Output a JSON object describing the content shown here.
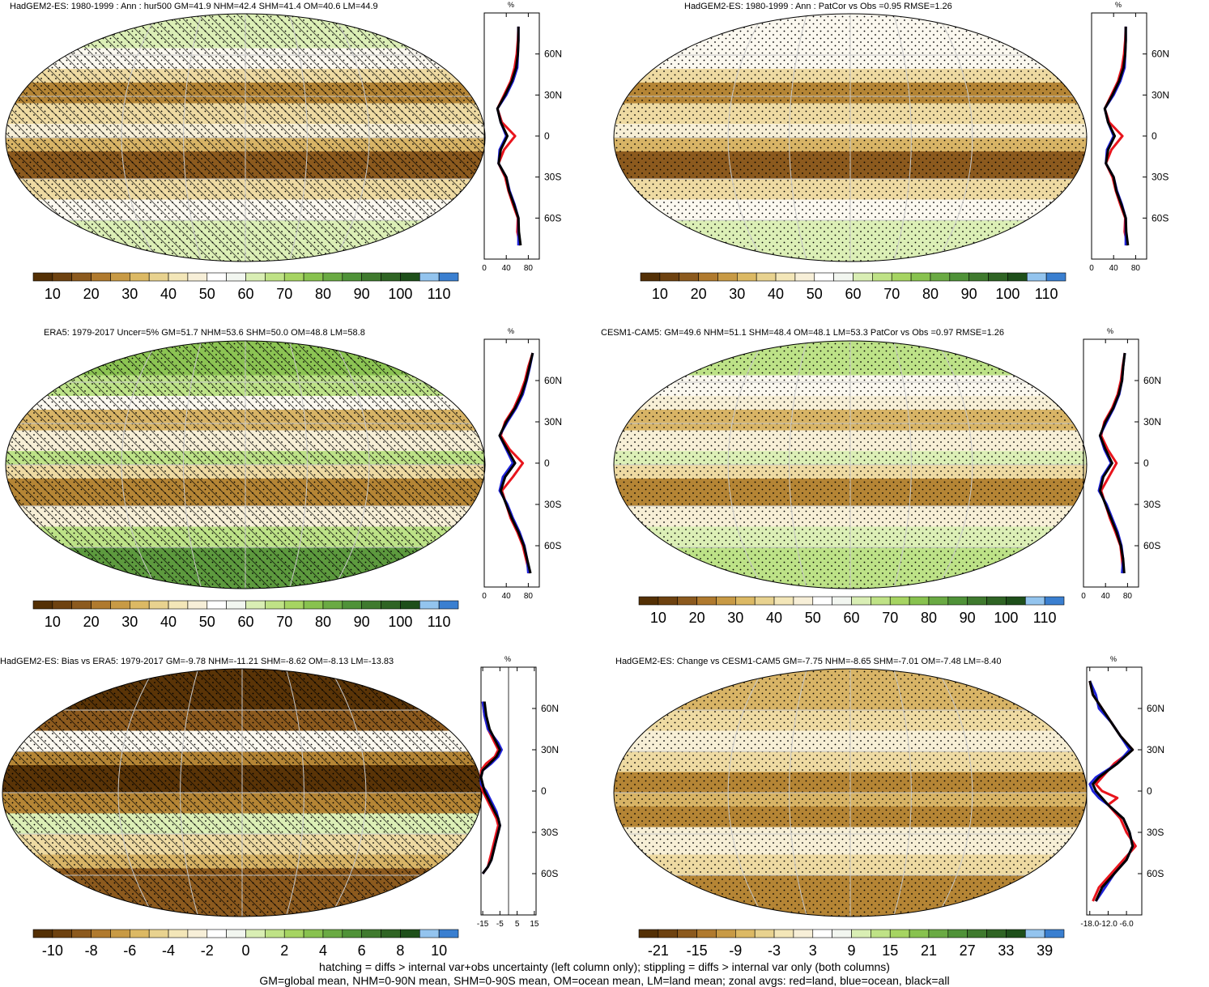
{
  "colorbars": {
    "absolute": {
      "labels": [
        "10",
        "20",
        "30",
        "40",
        "50",
        "60",
        "70",
        "80",
        "90",
        "100",
        "110"
      ],
      "colors": [
        "#543005",
        "#6e4210",
        "#8c5a1e",
        "#b07a2e",
        "#c89a45",
        "#dcb964",
        "#e8d28f",
        "#f3e6b8",
        "#f7efd8",
        "#ffffff",
        "#f2f6f0",
        "#d9eeb4",
        "#bfe286",
        "#a6d462",
        "#88c24f",
        "#6aaa43",
        "#4f9238",
        "#3f7a2e",
        "#2f6424",
        "#1e4f1a",
        "#93c4ee",
        "#3a7fd0"
      ]
    },
    "bias": {
      "labels": [
        "-10",
        "-8",
        "-6",
        "-4",
        "-2",
        "0",
        "2",
        "4",
        "6",
        "8",
        "10"
      ],
      "colors": [
        "#543005",
        "#6e4210",
        "#8c5a1e",
        "#b07a2e",
        "#c89a45",
        "#dcb964",
        "#e8d28f",
        "#f3e6b8",
        "#f7efd8",
        "#ffffff",
        "#f2f6f0",
        "#d9eeb4",
        "#bfe286",
        "#a6d462",
        "#88c24f",
        "#6aaa43",
        "#4f9238",
        "#3f7a2e",
        "#2f6424",
        "#1e4f1a",
        "#93c4ee",
        "#3a7fd0"
      ]
    },
    "change": {
      "labels": [
        "-21",
        "-15",
        "-9",
        "-3",
        "3",
        "9",
        "15",
        "21",
        "27",
        "33",
        "39"
      ],
      "colors": [
        "#543005",
        "#6e4210",
        "#8c5a1e",
        "#b07a2e",
        "#c89a45",
        "#dcb964",
        "#e8d28f",
        "#f3e6b8",
        "#f7efd8",
        "#ffffff",
        "#f2f6f0",
        "#d9eeb4",
        "#bfe286",
        "#a6d462",
        "#88c24f",
        "#6aaa43",
        "#4f9238",
        "#3f7a2e",
        "#2f6424",
        "#1e4f1a",
        "#93c4ee",
        "#3a7fd0"
      ]
    }
  },
  "series_colors": {
    "land": "#e8141c",
    "ocean": "#1f23d9",
    "all": "#000000"
  },
  "footer": {
    "line1": "hatching = diffs > internal var+obs uncertainty (left column only); stippling = diffs > internal var only (both columns)",
    "line2": "GM=global mean, NHM=0-90N mean, SHM=0-90S mean, OM=ocean mean, LM=land mean; zonal avgs: red=land, blue=ocean, black=all"
  },
  "chart_data": [
    {
      "type": "heatmap",
      "title": "HadGEM2-ES: 1980-1999 : Ann : hur500 GM=41.9 NHM=42.4 SHM=41.4 OM=40.6 LM=44.9",
      "colorbar": "absolute",
      "hatching": true,
      "stippling": true,
      "zonal": {
        "unit": "%",
        "xticks": [
          "0",
          "40",
          "80"
        ],
        "xlim": [
          0,
          100
        ],
        "yticks": [
          "60N",
          "30N",
          "0",
          "30S",
          "60S"
        ],
        "lat": [
          80,
          70,
          60,
          50,
          40,
          30,
          20,
          10,
          0,
          -10,
          -20,
          -30,
          -40,
          -50,
          -60,
          -70,
          -80
        ],
        "all": [
          62,
          62,
          61,
          58,
          50,
          38,
          24,
          30,
          42,
          30,
          26,
          40,
          45,
          54,
          62,
          63,
          66
        ],
        "land": [
          62,
          61,
          59,
          55,
          48,
          36,
          24,
          32,
          56,
          36,
          26,
          38,
          44,
          52,
          61,
          60,
          65
        ],
        "ocean": [
          62,
          62,
          61,
          60,
          52,
          40,
          24,
          30,
          40,
          28,
          26,
          40,
          46,
          55,
          62,
          62,
          62
        ]
      }
    },
    {
      "type": "heatmap",
      "title": "HadGEM2-ES: 1980-1999 : Ann : PatCor vs Obs =0.95 RMSE=1.26",
      "colorbar": "absolute",
      "hatching": false,
      "stippling": true,
      "zonal": {
        "unit": "%",
        "xticks": [
          "0",
          "40",
          "80"
        ],
        "xlim": [
          0,
          100
        ],
        "yticks": [
          "60N",
          "30N",
          "0",
          "30S",
          "60S"
        ],
        "lat": [
          80,
          70,
          60,
          50,
          40,
          30,
          20,
          10,
          0,
          -10,
          -20,
          -30,
          -40,
          -50,
          -60,
          -70,
          -80
        ],
        "all": [
          62,
          62,
          61,
          58,
          50,
          38,
          24,
          30,
          42,
          30,
          26,
          40,
          45,
          54,
          62,
          63,
          66
        ],
        "land": [
          62,
          61,
          59,
          55,
          48,
          36,
          24,
          32,
          56,
          36,
          26,
          38,
          44,
          52,
          61,
          60,
          65
        ],
        "ocean": [
          62,
          62,
          61,
          60,
          52,
          40,
          24,
          30,
          40,
          28,
          26,
          40,
          46,
          55,
          62,
          62,
          62
        ]
      }
    },
    {
      "type": "heatmap",
      "title": "ERA5: 1979-2017 Uncer=5% GM=51.7 NHM=53.6 SHM=50.0 OM=48.8 LM=58.8",
      "colorbar": "absolute",
      "hatching": true,
      "stippling": true,
      "zonal": {
        "unit": "%",
        "xticks": [
          "0",
          "40",
          "80"
        ],
        "xlim": [
          0,
          100
        ],
        "yticks": [
          "60N",
          "30N",
          "0",
          "30S",
          "60S"
        ],
        "lat": [
          80,
          70,
          60,
          50,
          40,
          30,
          20,
          10,
          0,
          -10,
          -20,
          -30,
          -40,
          -50,
          -60,
          -70,
          -80
        ],
        "all": [
          88,
          82,
          76,
          68,
          56,
          40,
          28,
          42,
          56,
          38,
          30,
          40,
          50,
          62,
          72,
          78,
          84
        ],
        "land": [
          88,
          80,
          74,
          65,
          54,
          38,
          30,
          46,
          70,
          52,
          32,
          40,
          48,
          60,
          70,
          76,
          82
        ],
        "ocean": [
          88,
          83,
          77,
          70,
          58,
          42,
          28,
          40,
          52,
          34,
          28,
          42,
          52,
          64,
          73,
          78,
          80
        ]
      }
    },
    {
      "type": "heatmap",
      "title": "CESM1-CAM5: GM=49.6 NHM=51.1 SHM=48.4 OM=48.1 LM=53.3 PatCor vs Obs =0.97 RMSE=1.26",
      "colorbar": "absolute",
      "hatching": false,
      "stippling": true,
      "zonal": {
        "unit": "%",
        "xticks": [
          "0",
          "40",
          "80"
        ],
        "xlim": [
          0,
          100
        ],
        "yticks": [
          "60N",
          "30N",
          "0",
          "30S",
          "60S"
        ],
        "lat": [
          80,
          70,
          60,
          50,
          40,
          30,
          20,
          10,
          0,
          -10,
          -20,
          -30,
          -40,
          -50,
          -60,
          -70,
          -80
        ],
        "all": [
          75,
          72,
          70,
          64,
          54,
          40,
          30,
          40,
          52,
          36,
          30,
          40,
          50,
          60,
          68,
          72,
          74
        ],
        "land": [
          75,
          71,
          68,
          62,
          52,
          38,
          32,
          44,
          60,
          46,
          32,
          40,
          48,
          58,
          67,
          70,
          72
        ],
        "ocean": [
          75,
          72,
          70,
          65,
          55,
          42,
          30,
          38,
          50,
          34,
          28,
          42,
          52,
          62,
          69,
          72,
          70
        ]
      }
    },
    {
      "type": "heatmap",
      "title": "HadGEM2-ES: Bias vs ERA5: 1979-2017 GM=-9.78 NHM=-11.21 SHM=-8.62 OM=-8.13 LM=-13.83",
      "colorbar": "bias",
      "hatching": true,
      "stippling": true,
      "zonal": {
        "unit": "%",
        "xticks": [
          "-15",
          "-5",
          "5",
          "15"
        ],
        "xlim": [
          -16,
          16
        ],
        "yticks": [
          "60N",
          "30N",
          "0",
          "30S",
          "60S"
        ],
        "lat": [
          65,
          55,
          45,
          40,
          35,
          30,
          25,
          20,
          15,
          10,
          5,
          0,
          -5,
          -10,
          -15,
          -20,
          -25,
          -30,
          -35,
          -40,
          -45,
          -50,
          -55,
          -60
        ],
        "all": [
          -14,
          -13,
          -11,
          -9,
          -7,
          -5,
          -7,
          -11,
          -15,
          -16,
          -15,
          -14,
          -12,
          -10,
          -8,
          -6,
          -5,
          -6,
          -7,
          -8,
          -9,
          -10,
          -12,
          -15
        ],
        "land": [
          -15,
          -14,
          -12,
          -10,
          -8,
          -6,
          -8,
          -13,
          -16,
          -16,
          -16,
          -15,
          -13,
          -11,
          -9,
          -7,
          -6,
          -7,
          -8,
          -9,
          -10,
          -11,
          -12,
          -15
        ],
        "ocean": [
          -15,
          -14,
          -12,
          -9,
          -6,
          -4,
          -6,
          -10,
          -15,
          -16,
          -16,
          -13,
          -11,
          -9,
          -7,
          -6,
          -5,
          -6,
          -7,
          -8,
          -9,
          -10,
          -12,
          -15
        ]
      }
    },
    {
      "type": "heatmap",
      "title": "HadGEM2-ES: Change vs CESM1-CAM5 GM=-7.75 NHM=-8.65 SHM=-7.01 OM=-7.48 LM=-8.40",
      "colorbar": "change",
      "hatching": false,
      "stippling": true,
      "zonal": {
        "unit": "%",
        "xticks": [
          "-18.0",
          "-12.0",
          "-6.0"
        ],
        "xlim": [
          -19,
          -1
        ],
        "yticks": [
          "60N",
          "30N",
          "0",
          "30S",
          "60S"
        ],
        "lat": [
          80,
          70,
          60,
          50,
          40,
          30,
          20,
          10,
          5,
          0,
          -5,
          -10,
          -20,
          -30,
          -40,
          -50,
          -60,
          -70,
          -80
        ],
        "all": [
          -18,
          -17,
          -14,
          -11,
          -8,
          -4,
          -9,
          -15,
          -17,
          -16,
          -14,
          -12,
          -7,
          -5,
          -4,
          -6,
          -10,
          -14,
          -16
        ],
        "land": [
          -18,
          -17,
          -14,
          -11,
          -8,
          -4,
          -10,
          -14,
          -16,
          -14,
          -9,
          -12,
          -8,
          -6,
          -3,
          -7,
          -11,
          -15,
          -17
        ],
        "ocean": [
          -18,
          -16,
          -15,
          -11,
          -8,
          -5,
          -9,
          -16,
          -18,
          -17,
          -15,
          -12,
          -7,
          -5,
          -4,
          -6,
          -10,
          -13,
          -16
        ]
      }
    }
  ]
}
